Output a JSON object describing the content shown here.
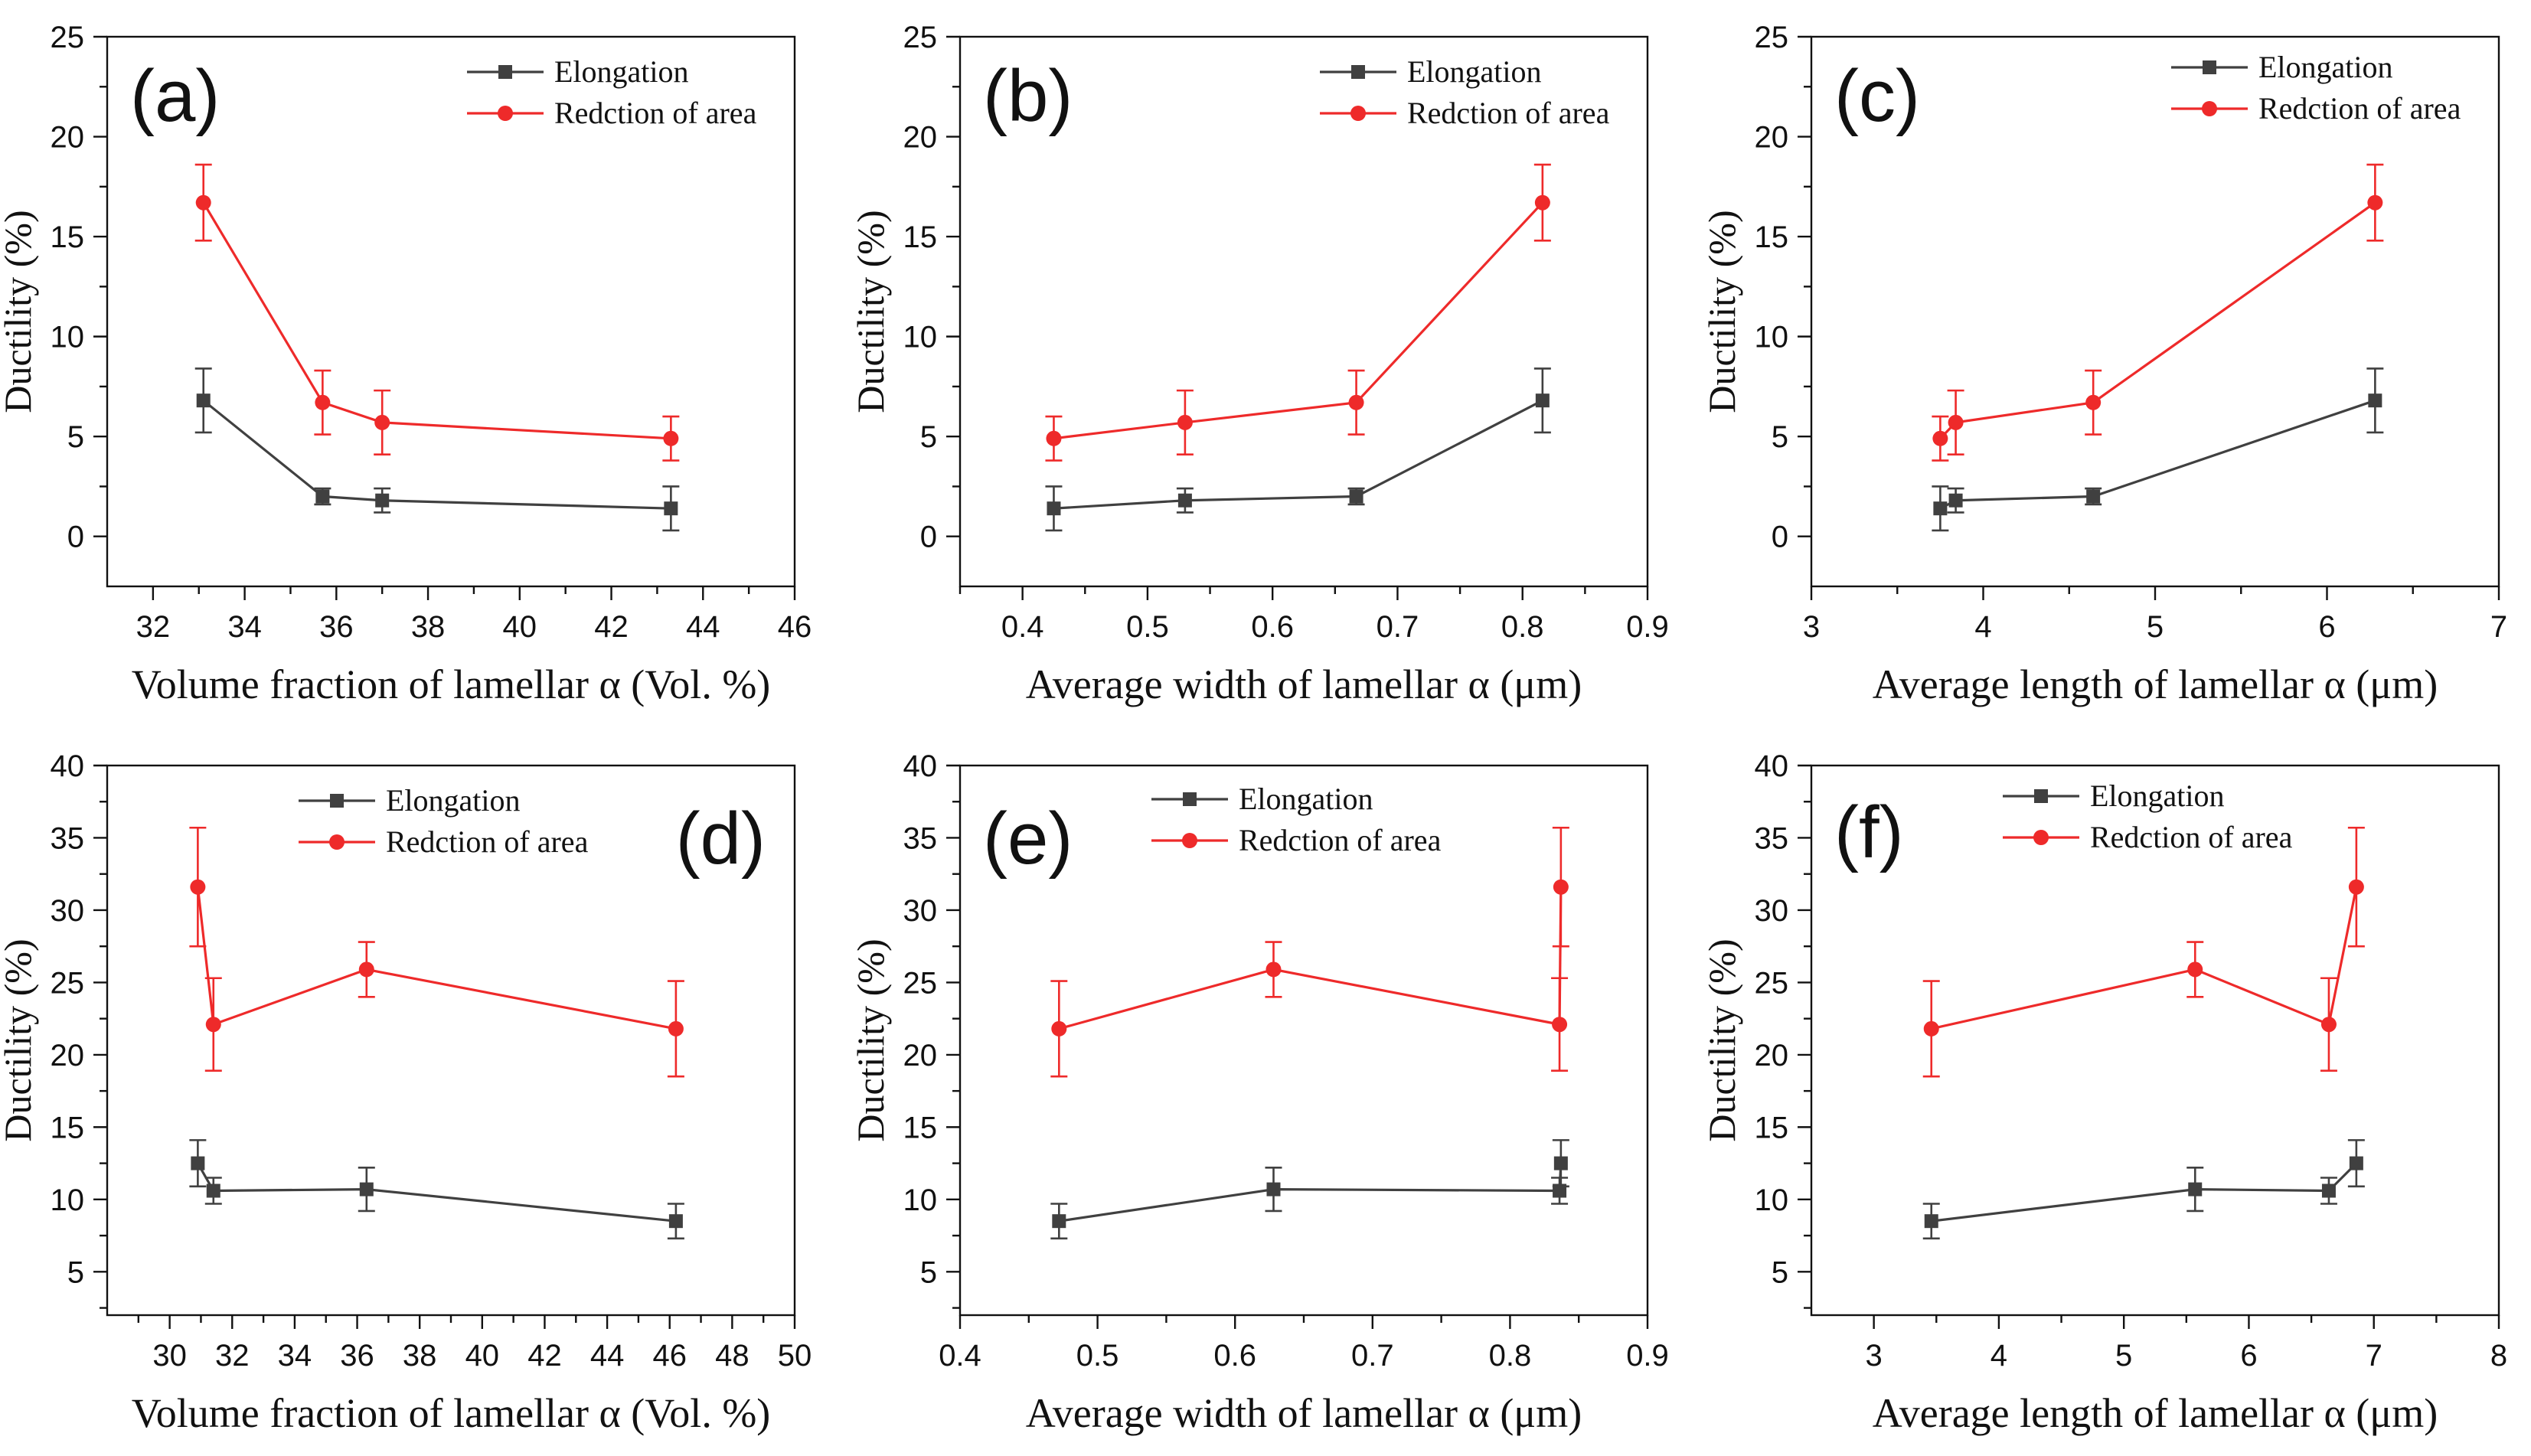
{
  "chart_data": [
    {
      "id": "a",
      "panel_label": "(a)",
      "type": "line",
      "xlabel": "Volume fraction of lamellar α (Vol. %)",
      "ylabel": "Ductility (%)",
      "xlim": [
        31,
        46
      ],
      "xticks": [
        32,
        34,
        36,
        38,
        40,
        42,
        44,
        46
      ],
      "ylim": [
        -2.5,
        25
      ],
      "yticks": [
        0,
        5,
        10,
        15,
        20,
        25
      ],
      "legend_position": "top-right",
      "series": [
        {
          "name": "Elongation",
          "color": "#404040",
          "marker": "square",
          "x": [
            33.1,
            35.7,
            37.0,
            43.3
          ],
          "y": [
            6.8,
            2.0,
            1.8,
            1.4
          ],
          "err": [
            1.6,
            0.4,
            0.6,
            1.1
          ]
        },
        {
          "name": "Redction of area",
          "color": "#ee2a2a",
          "marker": "circle",
          "x": [
            33.1,
            35.7,
            37.0,
            43.3
          ],
          "y": [
            16.7,
            6.7,
            5.7,
            4.9
          ],
          "err": [
            1.9,
            1.6,
            1.6,
            1.1
          ]
        }
      ]
    },
    {
      "id": "b",
      "panel_label": "(b)",
      "type": "line",
      "xlabel": "Average width of lamellar α (μm)",
      "ylabel": "Ductility (%)",
      "xlim": [
        0.35,
        0.9
      ],
      "xticks": [
        0.4,
        0.5,
        0.6,
        0.7,
        0.8,
        0.9
      ],
      "ylim": [
        -2.5,
        25
      ],
      "yticks": [
        0,
        5,
        10,
        15,
        20,
        25
      ],
      "legend_position": "top-right",
      "series": [
        {
          "name": "Elongation",
          "color": "#404040",
          "marker": "square",
          "x": [
            0.425,
            0.53,
            0.667,
            0.816
          ],
          "y": [
            1.4,
            1.8,
            2.0,
            6.8
          ],
          "err": [
            1.1,
            0.6,
            0.4,
            1.6
          ]
        },
        {
          "name": "Redction of area",
          "color": "#ee2a2a",
          "marker": "circle",
          "x": [
            0.425,
            0.53,
            0.667,
            0.816
          ],
          "y": [
            4.9,
            5.7,
            6.7,
            16.7
          ],
          "err": [
            1.1,
            1.6,
            1.6,
            1.9
          ]
        }
      ]
    },
    {
      "id": "c",
      "panel_label": "(c)",
      "type": "line",
      "xlabel": "Average length of lamellar α (μm)",
      "ylabel": "Ductility (%)",
      "xlim": [
        3,
        7
      ],
      "xticks": [
        3,
        4,
        5,
        6,
        7
      ],
      "ylim": [
        -2.5,
        25
      ],
      "yticks": [
        0,
        5,
        10,
        15,
        20,
        25
      ],
      "legend_position": "top-right",
      "series": [
        {
          "name": "Elongation",
          "color": "#404040",
          "marker": "square",
          "x": [
            3.75,
            3.84,
            4.64,
            6.28
          ],
          "y": [
            1.4,
            1.8,
            2.0,
            6.8
          ],
          "err": [
            1.1,
            0.6,
            0.4,
            1.6
          ]
        },
        {
          "name": "Redction of area",
          "color": "#ee2a2a",
          "marker": "circle",
          "x": [
            3.75,
            3.84,
            4.64,
            6.28
          ],
          "y": [
            4.9,
            5.7,
            6.7,
            16.7
          ],
          "err": [
            1.1,
            1.6,
            1.6,
            1.9
          ]
        }
      ]
    },
    {
      "id": "d",
      "panel_label": "(d)",
      "type": "line",
      "xlabel": "Volume fraction of lamellar α (Vol. %)",
      "ylabel": "Ductility (%)",
      "xlim": [
        28,
        50
      ],
      "xticks": [
        30,
        32,
        34,
        36,
        38,
        40,
        42,
        44,
        46,
        48,
        50
      ],
      "ylim": [
        2,
        40
      ],
      "yticks": [
        5,
        10,
        15,
        20,
        25,
        30,
        35,
        40
      ],
      "legend_position": "top-center",
      "series": [
        {
          "name": "Elongation",
          "color": "#404040",
          "marker": "square",
          "x": [
            30.9,
            31.4,
            36.3,
            46.2
          ],
          "y": [
            12.5,
            10.6,
            10.7,
            8.5
          ],
          "err": [
            1.6,
            0.9,
            1.5,
            1.2
          ]
        },
        {
          "name": "Redction of area",
          "color": "#ee2a2a",
          "marker": "circle",
          "x": [
            30.9,
            31.4,
            36.3,
            46.2
          ],
          "y": [
            31.6,
            22.1,
            25.9,
            21.8
          ],
          "err": [
            4.1,
            3.2,
            1.9,
            3.3
          ]
        }
      ]
    },
    {
      "id": "e",
      "panel_label": "(e)",
      "type": "line",
      "xlabel": "Average width of lamellar α (μm)",
      "ylabel": "Ductility (%)",
      "xlim": [
        0.4,
        0.9
      ],
      "xticks": [
        0.4,
        0.5,
        0.6,
        0.7,
        0.8,
        0.9
      ],
      "ylim": [
        2,
        40
      ],
      "yticks": [
        5,
        10,
        15,
        20,
        25,
        30,
        35,
        40
      ],
      "legend_position": "top-center",
      "series": [
        {
          "name": "Elongation",
          "color": "#404040",
          "marker": "square",
          "x": [
            0.472,
            0.628,
            0.836,
            0.837
          ],
          "y": [
            8.5,
            10.7,
            10.6,
            12.5
          ],
          "err": [
            1.2,
            1.5,
            0.9,
            1.6
          ]
        },
        {
          "name": "Redction of area",
          "color": "#ee2a2a",
          "marker": "circle",
          "x": [
            0.472,
            0.628,
            0.836,
            0.837
          ],
          "y": [
            21.8,
            25.9,
            22.1,
            31.6
          ],
          "err": [
            3.3,
            1.9,
            3.2,
            4.1
          ]
        }
      ]
    },
    {
      "id": "f",
      "panel_label": "(f)",
      "type": "line",
      "xlabel": "Average length of lamellar α (μm)",
      "ylabel": "Ductility (%)",
      "xlim": [
        2.5,
        8
      ],
      "xticks": [
        3,
        4,
        5,
        6,
        7,
        8
      ],
      "ylim": [
        2,
        40
      ],
      "yticks": [
        5,
        10,
        15,
        20,
        25,
        30,
        35,
        40
      ],
      "legend_position": "top-center",
      "series": [
        {
          "name": "Elongation",
          "color": "#404040",
          "marker": "square",
          "x": [
            3.46,
            5.57,
            6.64,
            6.86
          ],
          "y": [
            8.5,
            10.7,
            10.6,
            12.5
          ],
          "err": [
            1.2,
            1.5,
            0.9,
            1.6
          ]
        },
        {
          "name": "Redction of area",
          "color": "#ee2a2a",
          "marker": "circle",
          "x": [
            3.46,
            5.57,
            6.64,
            6.86
          ],
          "y": [
            21.8,
            25.9,
            22.1,
            31.6
          ],
          "err": [
            3.3,
            1.9,
            3.2,
            4.1
          ]
        }
      ]
    }
  ]
}
